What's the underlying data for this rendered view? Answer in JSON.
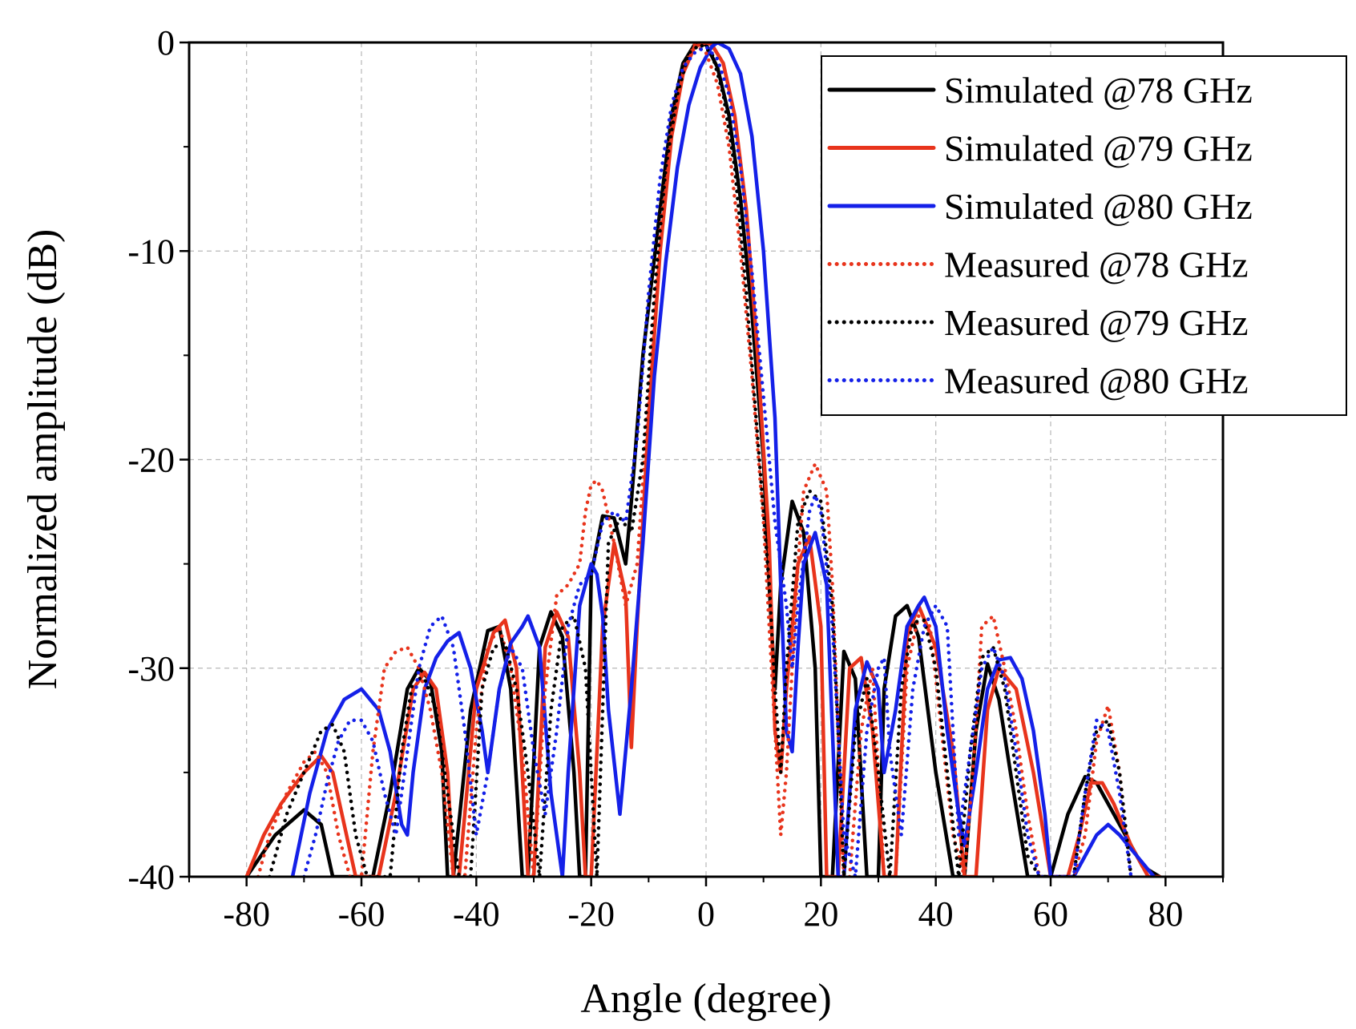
{
  "chart_data": {
    "type": "line",
    "title": "",
    "xlabel": "Angle (degree)",
    "ylabel": "Normalized amplitude (dB)",
    "xlim": [
      -90,
      90
    ],
    "ylim": [
      -40,
      0
    ],
    "xticks": [
      -80,
      -60,
      -40,
      -20,
      0,
      20,
      40,
      60,
      80
    ],
    "yticks": [
      0,
      -10,
      -20,
      -30,
      -40
    ],
    "xtick_labels": [
      "-80",
      "-60",
      "-40",
      "-20",
      "0",
      "20",
      "40",
      "60",
      "80"
    ],
    "ytick_labels": [
      "0",
      "-10",
      "-20",
      "-30",
      "-40"
    ],
    "grid": true,
    "legend_position": "top-right",
    "series": [
      {
        "name": "Simulated @78 GHz",
        "color": "#000000",
        "style": "solid",
        "x": [
          -80,
          -75,
          -70,
          -67,
          -65,
          -62,
          -58,
          -55,
          -52,
          -50,
          -48,
          -46,
          -45,
          -44,
          -41,
          -38,
          -36,
          -34,
          -32,
          -31,
          -29,
          -27,
          -25,
          -23,
          -22,
          -21,
          -20,
          -18,
          -16,
          -14,
          -13,
          -11,
          -8,
          -6,
          -4,
          -2,
          0,
          2,
          4,
          6,
          8,
          10,
          11,
          12,
          13,
          15,
          17,
          19,
          20,
          22,
          24,
          26,
          28,
          30,
          31,
          33,
          35,
          37,
          40,
          43,
          45,
          47,
          49,
          51,
          53,
          56,
          57,
          58,
          60,
          63,
          66,
          68,
          70,
          73,
          76,
          79
        ],
        "y": [
          -40,
          -38,
          -36.8,
          -37.5,
          -40,
          -40,
          -40,
          -36,
          -31,
          -30,
          -30.6,
          -34,
          -40,
          -40,
          -32,
          -28.2,
          -28,
          -31,
          -40,
          -40,
          -29,
          -27.3,
          -28.5,
          -35,
          -40,
          -40,
          -25.5,
          -22.7,
          -22.8,
          -25,
          -22,
          -15,
          -8,
          -3.5,
          -1.0,
          -0.1,
          -0.1,
          -1.2,
          -3.5,
          -7.5,
          -13,
          -20,
          -26,
          -31,
          -26,
          -22,
          -23.5,
          -30,
          -40,
          -40,
          -29.2,
          -30.5,
          -40,
          -40,
          -31,
          -27.5,
          -27,
          -28.5,
          -35,
          -40,
          -40,
          -33,
          -29.8,
          -31.5,
          -35,
          -40,
          -40,
          -40,
          -40,
          -37,
          -35.2,
          -35.5,
          -36.5,
          -38,
          -39.5,
          -40
        ]
      },
      {
        "name": "Simulated @79 GHz",
        "color": "#e8341c",
        "style": "solid",
        "x": [
          -80,
          -77,
          -74,
          -70,
          -67,
          -65,
          -63,
          -61,
          -59,
          -57,
          -54,
          -51,
          -49,
          -47,
          -45,
          -44,
          -43,
          -40,
          -37,
          -35,
          -33,
          -31,
          -30,
          -28,
          -26,
          -24,
          -22,
          -21,
          -20,
          -18,
          -16,
          -14,
          -13,
          -12,
          -10,
          -8,
          -6,
          -4,
          -2,
          0,
          1,
          3,
          5,
          7,
          9,
          11,
          12,
          13,
          14,
          16,
          18,
          20,
          21,
          23,
          25,
          27,
          29,
          31,
          33,
          35,
          37,
          40,
          43,
          45,
          47,
          49,
          51,
          54,
          57,
          60,
          63,
          65,
          67,
          69,
          71,
          74,
          77,
          79
        ],
        "y": [
          -40,
          -38,
          -36.5,
          -35,
          -34.2,
          -35,
          -37.5,
          -40,
          -40,
          -40,
          -36,
          -31,
          -30.2,
          -31,
          -35,
          -40,
          -40,
          -31,
          -28.3,
          -27.7,
          -30,
          -40,
          -40,
          -29,
          -27.3,
          -28.5,
          -35,
          -40,
          -40,
          -28,
          -24,
          -26.5,
          -33.8,
          -28,
          -18,
          -10,
          -4.5,
          -1.5,
          -0.2,
          0,
          -0.1,
          -1.0,
          -3.5,
          -8,
          -15,
          -24,
          -33,
          -35,
          -31,
          -25,
          -23.7,
          -28,
          -40,
          -40,
          -30,
          -29.5,
          -33,
          -40,
          -40,
          -28.5,
          -27,
          -29,
          -34,
          -40,
          -40,
          -32,
          -30,
          -31,
          -35,
          -40,
          -40,
          -38,
          -35.5,
          -35.5,
          -36.5,
          -38.5,
          -40,
          -40
        ]
      },
      {
        "name": "Simulated @80 GHz",
        "color": "#1420e8",
        "style": "solid",
        "x": [
          -72,
          -69,
          -66,
          -63,
          -60,
          -57,
          -55,
          -53,
          -52,
          -51,
          -49,
          -47,
          -45,
          -43,
          -41,
          -39,
          -38,
          -36,
          -34,
          -32,
          -31,
          -29,
          -27,
          -25,
          -24,
          -22,
          -20,
          -19,
          -18,
          -17,
          -15,
          -13,
          -11,
          -9,
          -7,
          -5,
          -3,
          -1,
          1,
          2,
          4,
          6,
          8,
          10,
          12,
          13,
          14,
          15,
          16,
          17,
          19,
          21,
          22,
          23,
          24,
          26,
          28,
          30,
          31,
          33,
          35,
          37,
          38,
          40,
          42,
          44,
          45,
          47,
          49,
          51,
          53,
          55,
          57,
          59,
          60,
          62,
          64,
          66,
          68,
          70,
          72,
          75,
          78
        ],
        "y": [
          -40,
          -36,
          -33,
          -31.5,
          -31,
          -32,
          -34,
          -37.5,
          -38,
          -35,
          -31,
          -29.5,
          -28.7,
          -28.3,
          -30,
          -33,
          -35,
          -31,
          -28.8,
          -28,
          -27.5,
          -29,
          -36,
          -40,
          -35,
          -27,
          -25,
          -25.5,
          -27.5,
          -32,
          -37,
          -31,
          -24,
          -16,
          -10.5,
          -6,
          -3,
          -1.2,
          -0.2,
          0,
          -0.3,
          -1.5,
          -4.5,
          -10,
          -18,
          -26,
          -33,
          -34,
          -29,
          -25,
          -23.5,
          -26,
          -33,
          -40,
          -40,
          -32,
          -29.7,
          -31,
          -35,
          -32,
          -28,
          -27,
          -26.6,
          -28,
          -33,
          -37,
          -38.5,
          -35,
          -31,
          -29.6,
          -29.5,
          -30.5,
          -33,
          -37,
          -40,
          -40,
          -40,
          -39,
          -38,
          -37.5,
          -38,
          -39,
          -40
        ]
      },
      {
        "name": "Measured @78 GHz",
        "color": "#e8341c",
        "style": "dotted",
        "x": [
          -78,
          -76,
          -73,
          -70,
          -68,
          -66,
          -64,
          -62,
          -60,
          -58,
          -56,
          -54,
          -52,
          -50,
          -48,
          -46,
          -44,
          -42,
          -40,
          -38,
          -36,
          -34,
          -32,
          -30,
          -28,
          -26,
          -24,
          -22,
          -21,
          -20,
          -19,
          -18,
          -16,
          -14,
          -12,
          -10,
          -8,
          -6,
          -4,
          -2,
          0,
          2,
          4,
          6,
          8,
          10,
          11,
          12,
          13,
          14,
          16,
          17,
          19,
          21,
          22,
          24,
          25,
          27,
          29,
          31,
          33,
          35,
          37,
          39,
          41,
          43,
          45,
          47,
          48,
          50,
          52,
          54,
          56,
          58,
          60,
          62,
          64,
          66,
          68,
          70,
          72,
          74
        ],
        "y": [
          -40,
          -38,
          -36,
          -34.5,
          -34,
          -35,
          -38,
          -40,
          -40,
          -34,
          -30,
          -29.2,
          -29,
          -30,
          -32,
          -35,
          -40,
          -40,
          -33,
          -29,
          -28,
          -30,
          -34,
          -40,
          -31,
          -26.5,
          -26,
          -25,
          -22.5,
          -21.2,
          -21,
          -21.5,
          -24,
          -27,
          -25,
          -17,
          -9,
          -4,
          -1.2,
          -0.1,
          -0.5,
          -2,
          -5,
          -10,
          -16,
          -23,
          -28,
          -33,
          -38,
          -35,
          -25,
          -21.5,
          -20.2,
          -21.5,
          -26,
          -40,
          -40,
          -33,
          -30,
          -40,
          -40,
          -30,
          -27.5,
          -28,
          -33,
          -38,
          -40,
          -33,
          -28,
          -27.5,
          -30,
          -33,
          -37,
          -40,
          -40,
          -40,
          -40,
          -38,
          -33.5,
          -31.8,
          -35,
          -40
        ]
      },
      {
        "name": "Measured @79 GHz",
        "color": "#000000",
        "style": "dotted",
        "x": [
          -76,
          -73,
          -70,
          -67,
          -65,
          -63,
          -61,
          -59,
          -57,
          -55,
          -53,
          -51,
          -49,
          -47,
          -45,
          -43,
          -41,
          -39,
          -37,
          -35,
          -33,
          -31,
          -29,
          -27,
          -25,
          -23,
          -21,
          -19,
          -17,
          -15,
          -13,
          -11,
          -9,
          -7,
          -5,
          -3,
          -1,
          1,
          3,
          5,
          7,
          9,
          11,
          12,
          13,
          14,
          16,
          18,
          20,
          22,
          23,
          24,
          26,
          28,
          30,
          32,
          34,
          36,
          38,
          40,
          42,
          44,
          46,
          48,
          50,
          52,
          54,
          56,
          58,
          60,
          62,
          64,
          66,
          68,
          70,
          72,
          74
        ],
        "y": [
          -40,
          -37,
          -35,
          -33,
          -32.7,
          -34,
          -38,
          -40,
          -40,
          -40,
          -34,
          -30.5,
          -30.5,
          -32,
          -36,
          -40,
          -40,
          -31,
          -29,
          -28.8,
          -31,
          -35,
          -40,
          -32,
          -28,
          -27.5,
          -30,
          -40,
          -24,
          -22.8,
          -23.5,
          -20,
          -12,
          -6,
          -2.5,
          -0.5,
          -0.1,
          -0.5,
          -2.5,
          -6,
          -12,
          -19,
          -26,
          -31,
          -35,
          -30,
          -23,
          -21.5,
          -22,
          -27,
          -33,
          -40,
          -33,
          -30.5,
          -35,
          -40,
          -31,
          -27.8,
          -27.7,
          -30,
          -35,
          -40,
          -34,
          -29.5,
          -29,
          -31,
          -35,
          -39,
          -40,
          -40,
          -40,
          -40,
          -36,
          -33,
          -32.5,
          -35,
          -40
        ]
      },
      {
        "name": "Measured @80 GHz",
        "color": "#1420e8",
        "style": "dotted",
        "x": [
          -70,
          -68,
          -66,
          -64,
          -62,
          -60,
          -58,
          -56,
          -54,
          -52,
          -50,
          -48,
          -46,
          -44,
          -42,
          -40,
          -38,
          -36,
          -34,
          -32,
          -30,
          -28,
          -26,
          -24,
          -22,
          -20,
          -18,
          -16,
          -14,
          -12,
          -10,
          -8,
          -6,
          -4,
          -2,
          0,
          2,
          4,
          6,
          8,
          10,
          12,
          14,
          15,
          16,
          18,
          19,
          20,
          22,
          24,
          26,
          28,
          30,
          31,
          32,
          34,
          36,
          38,
          40,
          42,
          43,
          44,
          46,
          48,
          50,
          52,
          54,
          56,
          58,
          60,
          62,
          64,
          66,
          68,
          70,
          72,
          74
        ],
        "y": [
          -40,
          -38,
          -35.5,
          -33.5,
          -32.5,
          -32.5,
          -33.5,
          -36,
          -38,
          -34,
          -30,
          -28,
          -27.5,
          -29,
          -33,
          -38,
          -35,
          -31,
          -29,
          -30,
          -34,
          -37,
          -33,
          -28,
          -26,
          -25.5,
          -23,
          -22.5,
          -23,
          -19,
          -12,
          -6.5,
          -3,
          -1.2,
          -0.5,
          -0.2,
          -0.8,
          -2.5,
          -6,
          -11,
          -17,
          -23,
          -27,
          -30,
          -27,
          -22.5,
          -21.7,
          -22.5,
          -28,
          -38,
          -40,
          -33,
          -30,
          -29.5,
          -34,
          -38,
          -31,
          -28,
          -27,
          -28,
          -33,
          -38,
          -34,
          -30,
          -29,
          -30.5,
          -34,
          -38,
          -40,
          -40,
          -40,
          -40,
          -36,
          -32.5,
          -33,
          -36,
          -40
        ]
      }
    ]
  }
}
